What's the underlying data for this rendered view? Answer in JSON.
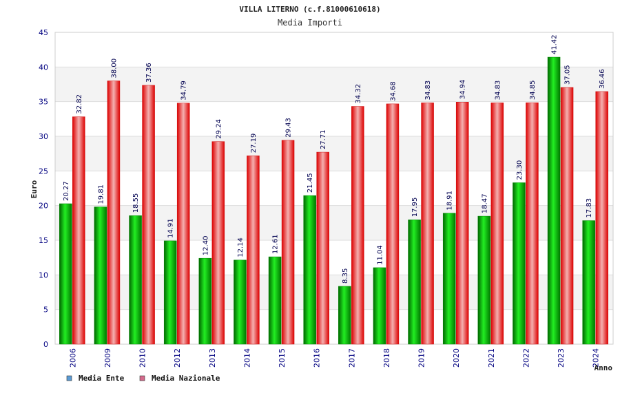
{
  "chart_data": {
    "type": "bar",
    "title": "VILLA LITERNO (c.f.81000610618)",
    "subtitle": "Media Importi",
    "xlabel": "Anno",
    "ylabel": "Euro",
    "ylim": [
      0,
      45
    ],
    "yticks": [
      0,
      5,
      10,
      15,
      20,
      25,
      30,
      35,
      40,
      45
    ],
    "grid": true,
    "legend_position": "bottom-left",
    "categories": [
      "2006",
      "2009",
      "2010",
      "2012",
      "2013",
      "2014",
      "2015",
      "2016",
      "2017",
      "2018",
      "2019",
      "2020",
      "2021",
      "2022",
      "2023",
      "2024"
    ],
    "series": [
      {
        "name": "Media Ente",
        "legend_color": "#5b9bd5",
        "color": "#00aa00",
        "values": [
          20.27,
          19.81,
          18.55,
          14.91,
          12.4,
          12.14,
          12.61,
          21.45,
          8.35,
          11.04,
          17.95,
          18.91,
          18.47,
          23.3,
          41.42,
          17.83
        ],
        "labels": [
          "20.27",
          "19.81",
          "18.55",
          "14.91",
          "12.40",
          "12.14",
          "12.61",
          "21.45",
          "8.35",
          "11.04",
          "17.95",
          "18.91",
          "18.47",
          "23.30",
          "41.42",
          "17.83"
        ]
      },
      {
        "name": "Media Nazionale",
        "legend_color": "#d46a8c",
        "color": "#e8202a",
        "values": [
          32.82,
          38.0,
          37.36,
          34.79,
          29.24,
          27.19,
          29.43,
          27.71,
          34.32,
          34.68,
          34.83,
          34.94,
          34.83,
          34.85,
          37.05,
          36.46
        ],
        "labels": [
          "32.82",
          "38.00",
          "37.36",
          "34.79",
          "29.24",
          "27.19",
          "29.43",
          "27.71",
          "34.32",
          "34.68",
          "34.83",
          "34.94",
          "34.83",
          "34.85",
          "37.05",
          "36.46"
        ]
      }
    ]
  }
}
